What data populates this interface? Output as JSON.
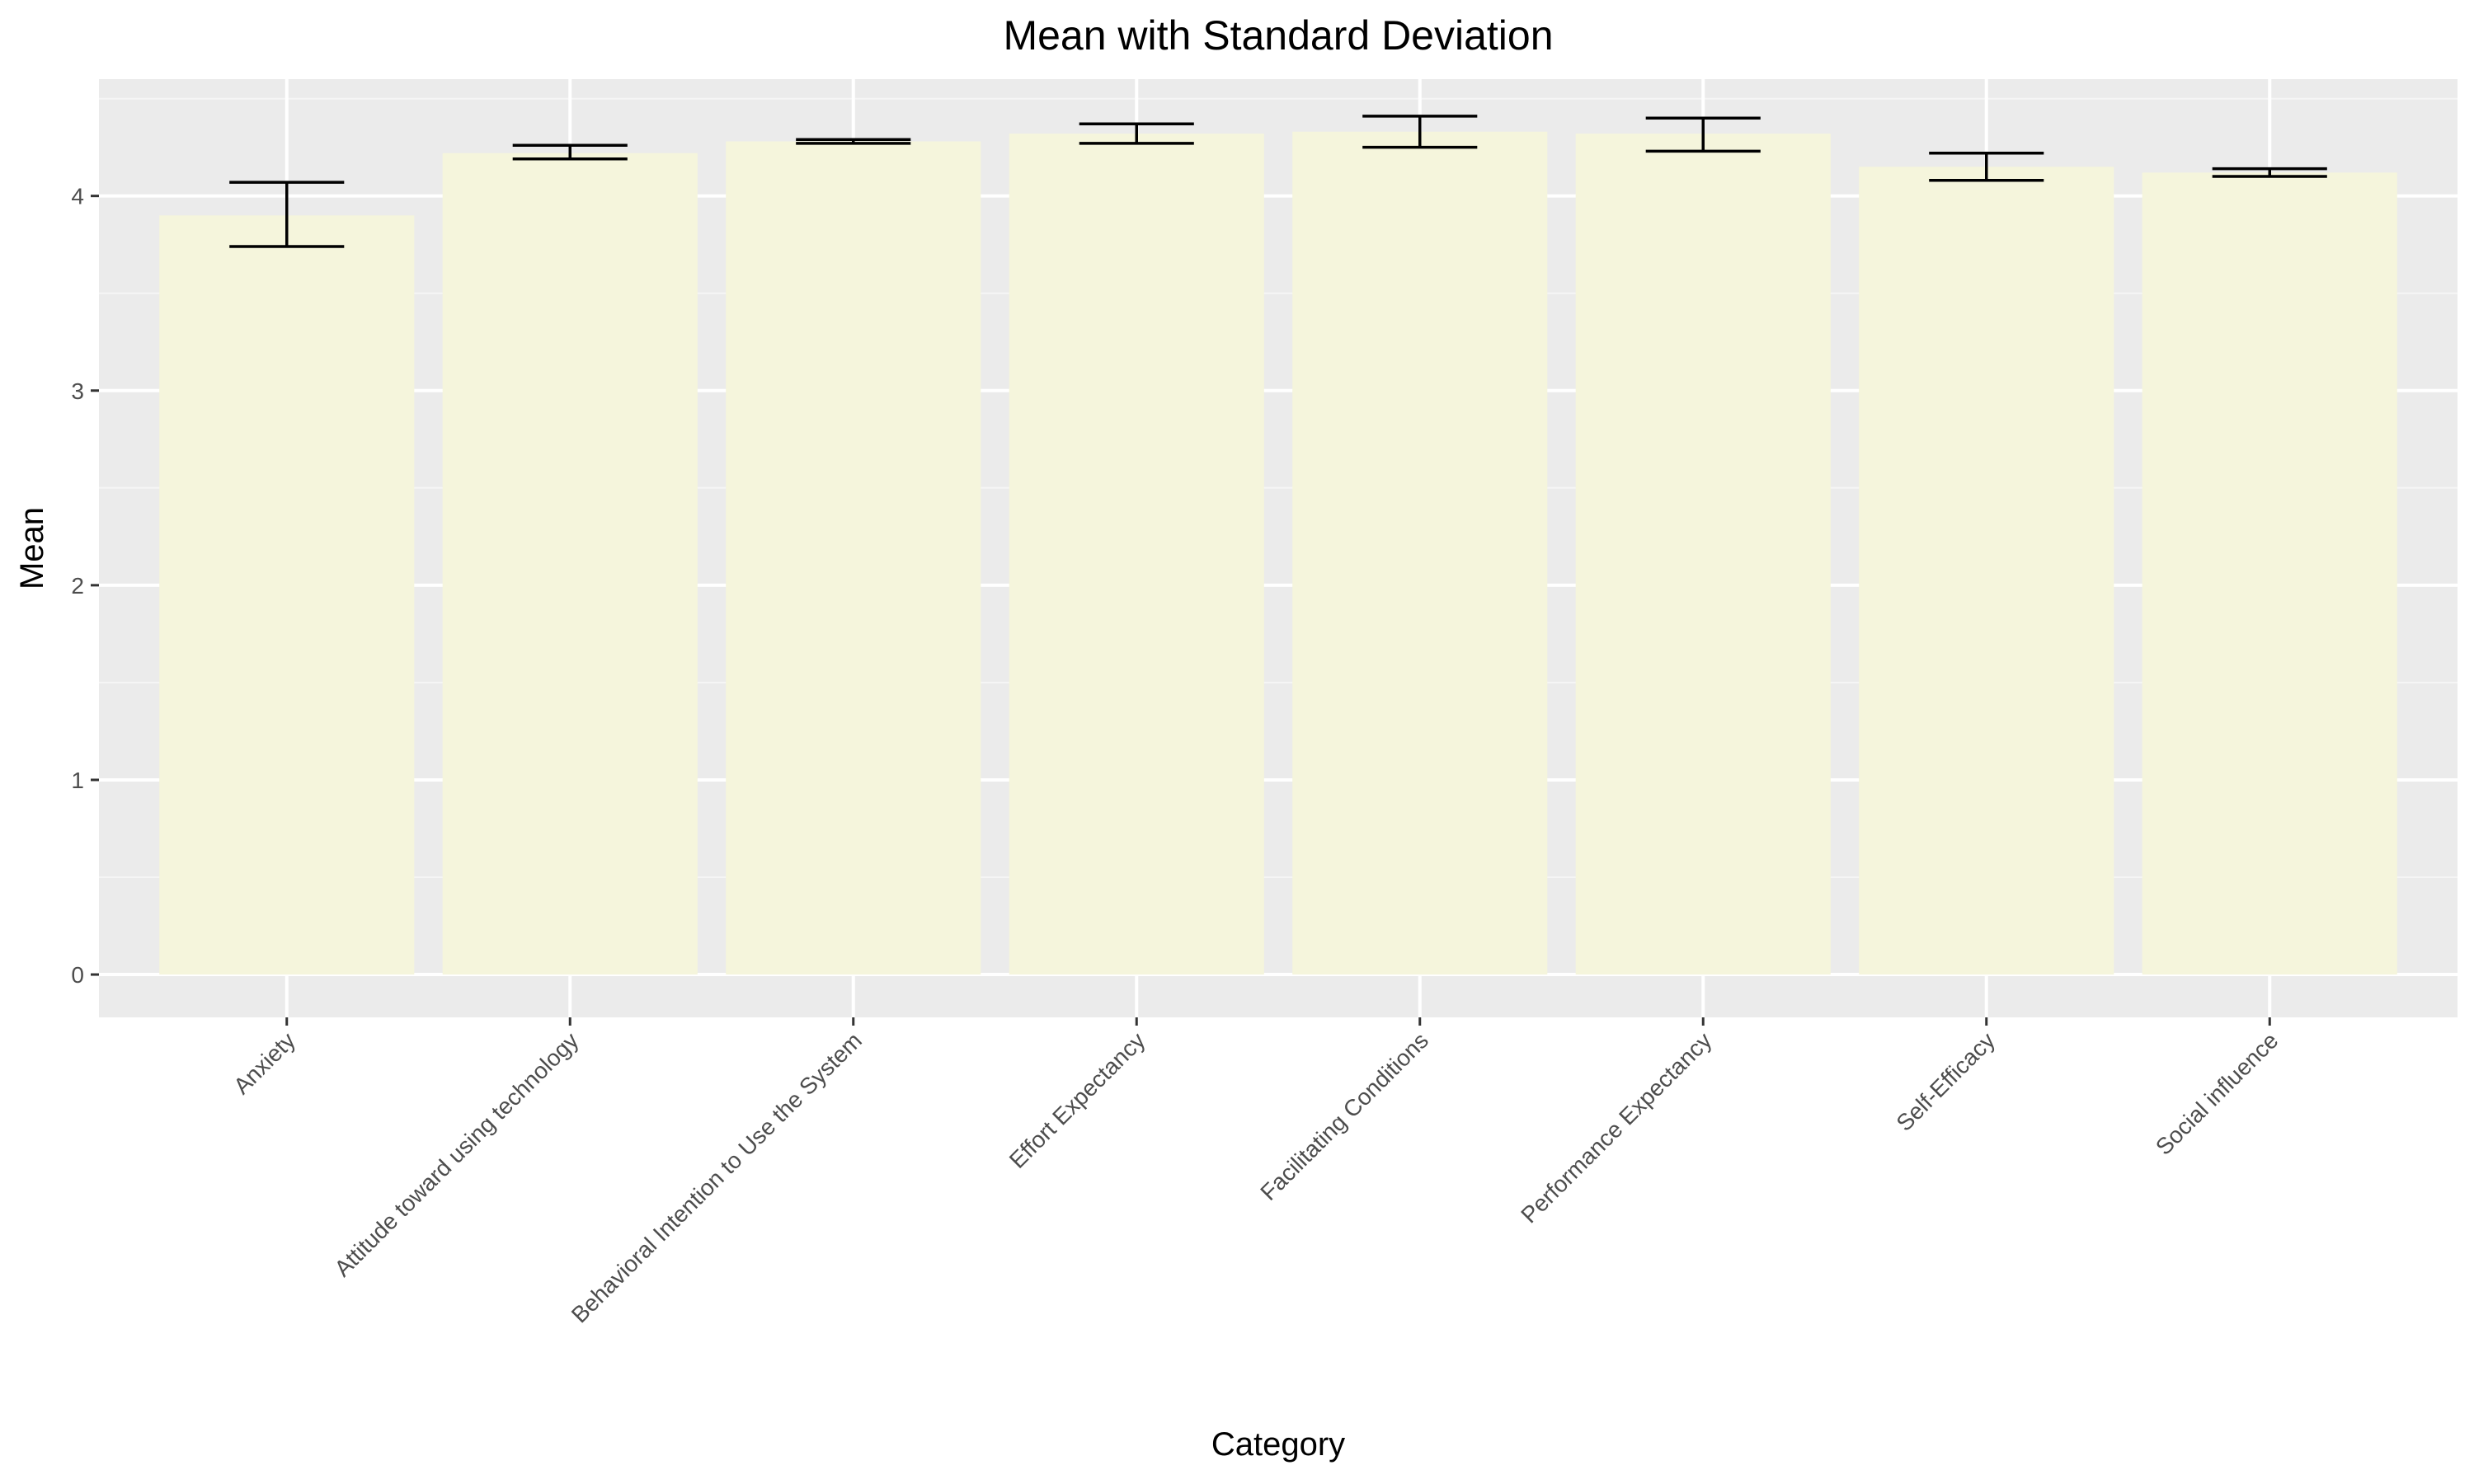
{
  "chart_data": {
    "type": "bar",
    "title": "Mean with Standard Deviation",
    "xlabel": "Category",
    "ylabel": "Mean",
    "ylim": [
      -0.22,
      4.6
    ],
    "yticks": [
      0,
      1,
      2,
      3,
      4
    ],
    "grid": true,
    "categories": [
      "Anxiety",
      "Attitude toward using technology",
      "Behavioral Intention to Use the System",
      "Effort Expectancy",
      "Facilitating Conditions",
      "Performance Expectancy",
      "Self-Efficacy",
      "Social influence"
    ],
    "values": [
      3.9,
      4.22,
      4.28,
      4.32,
      4.33,
      4.32,
      4.15,
      4.12
    ],
    "error_low": [
      3.74,
      4.19,
      4.27,
      4.27,
      4.25,
      4.23,
      4.08,
      4.1
    ],
    "error_high": [
      4.07,
      4.26,
      4.29,
      4.37,
      4.41,
      4.4,
      4.22,
      4.14
    ]
  },
  "colors": {
    "panel_background": "#ebebeb",
    "grid_major": "#ffffff",
    "grid_minor": "#f5f5f5",
    "bar_fill": "#f5f5dc",
    "error_bar": "#000000",
    "tick_mark": "#333333"
  }
}
